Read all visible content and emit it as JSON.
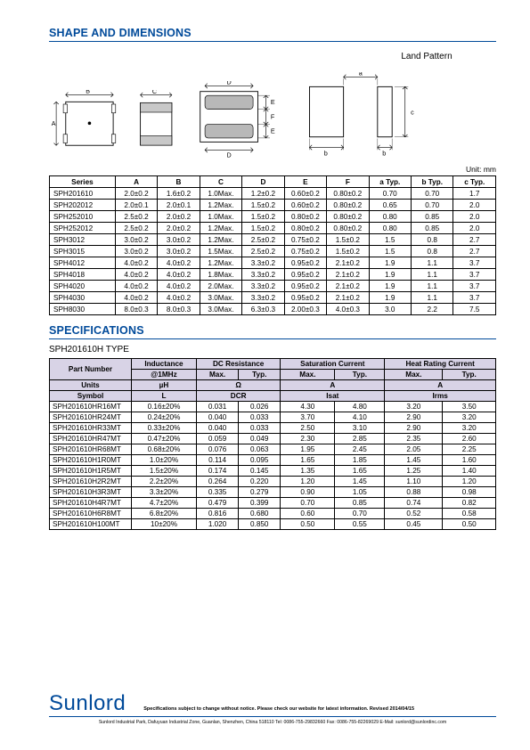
{
  "titles": {
    "shape": "SHAPE AND DIMENSIONS",
    "specs": "SPECIFICATIONS",
    "landPattern": "Land Pattern",
    "unit": "Unit: mm",
    "subtype": "SPH201610H TYPE"
  },
  "dimTable": {
    "headers": [
      "Series",
      "A",
      "B",
      "C",
      "D",
      "E",
      "F",
      "a Typ.",
      "b Typ.",
      "c Typ."
    ],
    "rows": [
      [
        "SPH201610",
        "2.0±0.2",
        "1.6±0.2",
        "1.0Max.",
        "1.2±0.2",
        "0.60±0.2",
        "0.80±0.2",
        "0.70",
        "0.70",
        "1.7"
      ],
      [
        "SPH202012",
        "2.0±0.1",
        "2.0±0.1",
        "1.2Max.",
        "1.5±0.2",
        "0.60±0.2",
        "0.80±0.2",
        "0.65",
        "0.70",
        "2.0"
      ],
      [
        "SPH252010",
        "2.5±0.2",
        "2.0±0.2",
        "1.0Max.",
        "1.5±0.2",
        "0.80±0.2",
        "0.80±0.2",
        "0.80",
        "0.85",
        "2.0"
      ],
      [
        "SPH252012",
        "2.5±0.2",
        "2.0±0.2",
        "1.2Max.",
        "1.5±0.2",
        "0.80±0.2",
        "0.80±0.2",
        "0.80",
        "0.85",
        "2.0"
      ],
      [
        "SPH3012",
        "3.0±0.2",
        "3.0±0.2",
        "1.2Max.",
        "2.5±0.2",
        "0.75±0.2",
        "1.5±0.2",
        "1.5",
        "0.8",
        "2.7"
      ],
      [
        "SPH3015",
        "3.0±0.2",
        "3.0±0.2",
        "1.5Max.",
        "2.5±0.2",
        "0.75±0.2",
        "1.5±0.2",
        "1.5",
        "0.8",
        "2.7"
      ],
      [
        "SPH4012",
        "4.0±0.2",
        "4.0±0.2",
        "1.2Max.",
        "3.3±0.2",
        "0.95±0.2",
        "2.1±0.2",
        "1.9",
        "1.1",
        "3.7"
      ],
      [
        "SPH4018",
        "4.0±0.2",
        "4.0±0.2",
        "1.8Max.",
        "3.3±0.2",
        "0.95±0.2",
        "2.1±0.2",
        "1.9",
        "1.1",
        "3.7"
      ],
      [
        "SPH4020",
        "4.0±0.2",
        "4.0±0.2",
        "2.0Max.",
        "3.3±0.2",
        "0.95±0.2",
        "2.1±0.2",
        "1.9",
        "1.1",
        "3.7"
      ],
      [
        "SPH4030",
        "4.0±0.2",
        "4.0±0.2",
        "3.0Max.",
        "3.3±0.2",
        "0.95±0.2",
        "2.1±0.2",
        "1.9",
        "1.1",
        "3.7"
      ],
      [
        "SPH8030",
        "8.0±0.3",
        "8.0±0.3",
        "3.0Max.",
        "6.3±0.3",
        "2.00±0.3",
        "4.0±0.3",
        "3.0",
        "2.2",
        "7.5"
      ]
    ]
  },
  "specTable": {
    "topHeaders": [
      "Part Number",
      "Inductance",
      "DC Resistance",
      "Saturation Current",
      "Heat Rating Current"
    ],
    "sub1": [
      "@1MHz",
      "Max.",
      "Typ.",
      "Max.",
      "Typ.",
      "Max.",
      "Typ."
    ],
    "units": [
      "Units",
      "µH",
      "Ω",
      "A",
      "A"
    ],
    "symbol": [
      "Symbol",
      "L",
      "DCR",
      "Isat",
      "Irms"
    ],
    "rows": [
      [
        "SPH201610HR16MT",
        "0.16±20%",
        "0.031",
        "0.026",
        "4.30",
        "4.80",
        "3.20",
        "3.50"
      ],
      [
        "SPH201610HR24MT",
        "0.24±20%",
        "0.040",
        "0.033",
        "3.70",
        "4.10",
        "2.90",
        "3.20"
      ],
      [
        "SPH201610HR33MT",
        "0.33±20%",
        "0.040",
        "0.033",
        "2.50",
        "3.10",
        "2.90",
        "3.20"
      ],
      [
        "SPH201610HR47MT",
        "0.47±20%",
        "0.059",
        "0.049",
        "2.30",
        "2.85",
        "2.35",
        "2.60"
      ],
      [
        "SPH201610HR68MT",
        "0.68±20%",
        "0.076",
        "0.063",
        "1.95",
        "2.45",
        "2.05",
        "2.25"
      ],
      [
        "SPH201610H1R0MT",
        "1.0±20%",
        "0.114",
        "0.095",
        "1.65",
        "1.85",
        "1.45",
        "1.60"
      ],
      [
        "SPH201610H1R5MT",
        "1.5±20%",
        "0.174",
        "0.145",
        "1.35",
        "1.65",
        "1.25",
        "1.40"
      ],
      [
        "SPH201610H2R2MT",
        "2.2±20%",
        "0.264",
        "0.220",
        "1.20",
        "1.45",
        "1.10",
        "1.20"
      ],
      [
        "SPH201610H3R3MT",
        "3.3±20%",
        "0.335",
        "0.279",
        "0.90",
        "1.05",
        "0.88",
        "0.98"
      ],
      [
        "SPH201610H4R7MT",
        "4.7±20%",
        "0.479",
        "0.399",
        "0.70",
        "0.85",
        "0.74",
        "0.82"
      ],
      [
        "SPH201610H6R8MT",
        "6.8±20%",
        "0.816",
        "0.680",
        "0.60",
        "0.70",
        "0.52",
        "0.58"
      ],
      [
        "SPH201610H100MT",
        "10±20%",
        "1.020",
        "0.850",
        "0.50",
        "0.55",
        "0.45",
        "0.50"
      ]
    ]
  },
  "footer": {
    "brand": "Sunlord",
    "notice": "Specifications subject to change without notice. Please check our website for latest information.     Revised 2014/04/15",
    "address": "Sunlord Industrial Park, Dafuyuan Industrial Zone, Guanlan, Shenzhen, China 518110 Tel: 0086-755-29832660 Fax: 0086-755-82269029 E-Mail: sunlord@sunlordinc.com"
  },
  "diag": {
    "A": "A",
    "B": "B",
    "C": "C",
    "D": "D",
    "E": "E",
    "F": "F",
    "a": "a",
    "b": "b",
    "c": "c"
  }
}
